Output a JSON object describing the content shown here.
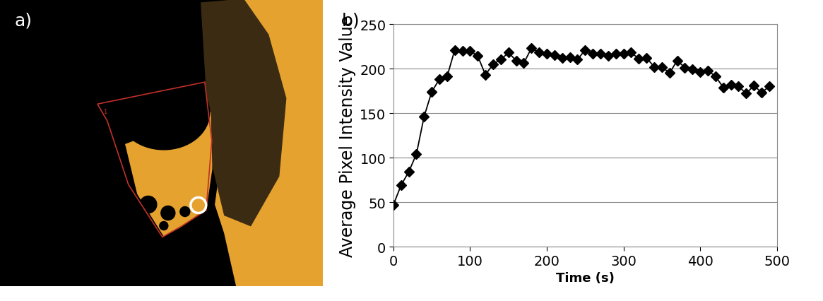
{
  "panel_labels": [
    "a)",
    "b)"
  ],
  "image": {
    "roi_label": "1"
  },
  "chart_data": {
    "type": "line",
    "x_label": "Time (s)",
    "y_label": "Average Pixel Intensity Value",
    "x": [
      0,
      10,
      20,
      30,
      40,
      50,
      60,
      70,
      80,
      90,
      100,
      110,
      120,
      130,
      140,
      150,
      160,
      170,
      180,
      190,
      200,
      210,
      220,
      230,
      240,
      250,
      260,
      270,
      280,
      290,
      300,
      310,
      320,
      330,
      340,
      350,
      360,
      370,
      380,
      390,
      400,
      410,
      420,
      430,
      440,
      450,
      460,
      470,
      480,
      490
    ],
    "values": [
      47,
      69,
      84,
      104,
      146,
      174,
      188,
      191,
      221,
      220,
      220,
      214,
      193,
      205,
      210,
      218,
      209,
      206,
      223,
      218,
      217,
      215,
      212,
      213,
      210,
      221,
      217,
      217,
      214,
      217,
      217,
      218,
      211,
      212,
      202,
      202,
      195,
      209,
      201,
      199,
      196,
      198,
      191,
      179,
      182,
      180,
      172,
      181,
      173,
      180
    ],
    "color": "#000000",
    "marker": "diamond",
    "line_style": "solid",
    "xlim": [
      0,
      500
    ],
    "xticks": [
      0,
      100,
      200,
      300,
      400,
      500
    ],
    "ylim": [
      0,
      250
    ],
    "yticks": [
      0,
      50,
      100,
      150,
      200,
      250
    ],
    "grid": "y"
  }
}
